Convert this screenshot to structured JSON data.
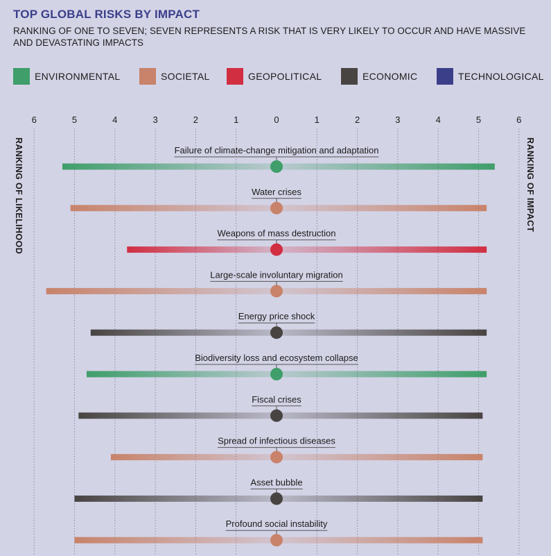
{
  "header": {
    "title": "TOP GLOBAL RISKS BY IMPACT",
    "subtitle": "RANKING OF ONE TO SEVEN; SEVEN REPRESENTS A RISK THAT IS VERY LIKELY TO OCCUR AND HAVE MASSIVE AND DEVASTATING IMPACTS"
  },
  "legend": [
    {
      "label": "ENVIRONMENTAL",
      "color": "#3f9e6a"
    },
    {
      "label": "SOCIETAL",
      "color": "#c8836a"
    },
    {
      "label": "GEOPOLITICAL",
      "color": "#d12e42"
    },
    {
      "label": "ECONOMIC",
      "color": "#484442"
    },
    {
      "label": "TECHNOLOGICAL",
      "color": "#3b3f8a"
    }
  ],
  "side_labels": {
    "left": "RANKING OF LIKELIHOOD",
    "right": "RANKING OF IMPACT"
  },
  "chart_data": {
    "type": "bar",
    "left_axis_ticks": [
      "6",
      "5",
      "4",
      "3",
      "2",
      "1",
      "0"
    ],
    "right_axis_ticks": [
      "1",
      "2",
      "3",
      "4",
      "5",
      "6"
    ],
    "xlim_left": [
      0,
      6
    ],
    "xlim_right": [
      0,
      6
    ],
    "grid": true,
    "legend_position": "top",
    "series": [
      {
        "name": "Likelihood",
        "side": "left"
      },
      {
        "name": "Impact",
        "side": "right"
      }
    ],
    "categories": [
      "Failure of climate-change mitigation and adaptation",
      "Water crises",
      "Weapons of mass destruction",
      "Large-scale involuntary migration",
      "Energy price shock",
      "Biodiversity loss and ecosystem collapse",
      "Fiscal crises",
      "Spread of infectious diseases",
      "Asset bubble",
      "Profound social instability"
    ],
    "category_type": [
      "ENVIRONMENTAL",
      "SOCIETAL",
      "GEOPOLITICAL",
      "SOCIETAL",
      "ECONOMIC",
      "ENVIRONMENTAL",
      "ECONOMIC",
      "SOCIETAL",
      "ECONOMIC",
      "SOCIETAL"
    ],
    "likelihood": [
      5.3,
      5.1,
      3.7,
      5.7,
      4.6,
      4.7,
      4.9,
      4.1,
      5.0,
      5.0
    ],
    "impact": [
      5.4,
      5.2,
      5.2,
      5.2,
      5.2,
      5.2,
      5.1,
      5.1,
      5.1,
      5.1
    ]
  }
}
